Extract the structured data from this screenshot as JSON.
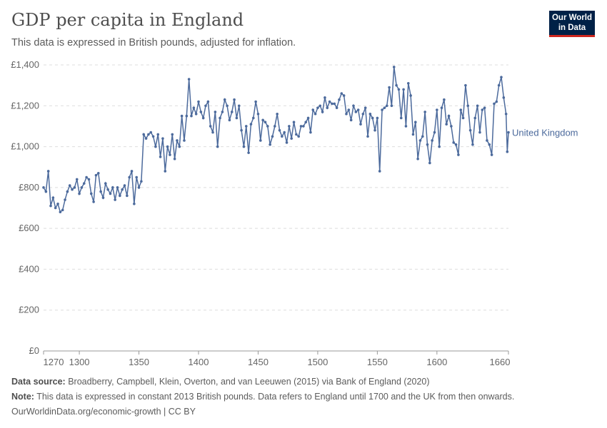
{
  "header": {
    "title": "GDP per capita in England",
    "subtitle": "This data is expressed in British pounds, adjusted for inflation.",
    "logo": "Our World in Data"
  },
  "footer": {
    "source_label": "Data source:",
    "source": "Broadberry, Campbell, Klein, Overton, and van Leeuwen (2015) via Bank of England (2020)",
    "note_label": "Note:",
    "note": "This data is expressed in constant 2013 British pounds. Data refers to England until 1700 and the UK from then onwards.",
    "url": "OurWorldinData.org/economic-growth | CC BY"
  },
  "colors": {
    "series": "#4c6a9c",
    "grid": "#dddddd",
    "text": "#666666"
  },
  "chart_data": {
    "type": "line",
    "title": "GDP per capita in England",
    "xlim": [
      1270,
      1660
    ],
    "ylim": [
      0,
      1400
    ],
    "x_ticks": [
      1270,
      1300,
      1350,
      1400,
      1450,
      1500,
      1550,
      1600,
      1660
    ],
    "y_ticks": [
      {
        "v": 0,
        "label": "£0"
      },
      {
        "v": 200,
        "label": "£200"
      },
      {
        "v": 400,
        "label": "£400"
      },
      {
        "v": 600,
        "label": "£600"
      },
      {
        "v": 800,
        "label": "£800"
      },
      {
        "v": 1000,
        "label": "£1,000"
      },
      {
        "v": 1200,
        "label": "£1,200"
      },
      {
        "v": 1400,
        "label": "£1,400"
      }
    ],
    "grid": "horizontal dashed",
    "legend": "right, at line end",
    "series": [
      {
        "name": "United Kingdom",
        "x": [
          1270,
          1272,
          1274,
          1276,
          1278,
          1280,
          1282,
          1284,
          1286,
          1288,
          1290,
          1292,
          1294,
          1296,
          1298,
          1300,
          1302,
          1304,
          1306,
          1308,
          1310,
          1312,
          1314,
          1316,
          1318,
          1320,
          1322,
          1324,
          1326,
          1328,
          1330,
          1332,
          1334,
          1336,
          1338,
          1340,
          1342,
          1344,
          1346,
          1348,
          1350,
          1352,
          1354,
          1356,
          1358,
          1360,
          1362,
          1364,
          1366,
          1368,
          1370,
          1372,
          1374,
          1376,
          1378,
          1380,
          1382,
          1384,
          1386,
          1388,
          1390,
          1392,
          1394,
          1396,
          1398,
          1400,
          1402,
          1404,
          1406,
          1408,
          1410,
          1412,
          1414,
          1416,
          1418,
          1420,
          1422,
          1424,
          1426,
          1428,
          1430,
          1432,
          1434,
          1436,
          1438,
          1440,
          1442,
          1444,
          1446,
          1448,
          1450,
          1452,
          1454,
          1456,
          1458,
          1460,
          1462,
          1464,
          1466,
          1468,
          1470,
          1472,
          1474,
          1476,
          1478,
          1480,
          1482,
          1484,
          1486,
          1488,
          1490,
          1492,
          1494,
          1496,
          1498,
          1500,
          1502,
          1504,
          1506,
          1508,
          1510,
          1512,
          1514,
          1516,
          1518,
          1520,
          1522,
          1524,
          1526,
          1528,
          1530,
          1532,
          1534,
          1536,
          1538,
          1540,
          1542,
          1544,
          1546,
          1548,
          1550,
          1552,
          1554,
          1556,
          1558,
          1560,
          1562,
          1564,
          1566,
          1568,
          1570,
          1572,
          1574,
          1576,
          1578,
          1580,
          1582,
          1584,
          1586,
          1588,
          1590,
          1592,
          1594,
          1596,
          1598,
          1600,
          1602,
          1604,
          1606,
          1608,
          1610,
          1612,
          1614,
          1616,
          1618,
          1620,
          1622,
          1624,
          1626,
          1628,
          1630,
          1632,
          1634,
          1636,
          1638,
          1640,
          1642,
          1644,
          1646,
          1648,
          1650,
          1652,
          1654,
          1656,
          1658,
          1659,
          1660
        ],
        "y": [
          800,
          780,
          880,
          710,
          750,
          700,
          720,
          680,
          690,
          740,
          780,
          810,
          790,
          800,
          840,
          770,
          800,
          820,
          850,
          840,
          770,
          730,
          860,
          870,
          780,
          750,
          820,
          790,
          770,
          800,
          740,
          800,
          760,
          790,
          810,
          760,
          850,
          880,
          720,
          850,
          800,
          830,
          1060,
          1040,
          1060,
          1070,
          1050,
          1000,
          1060,
          950,
          1040,
          880,
          1000,
          960,
          1060,
          940,
          1030,
          1000,
          1150,
          1030,
          1150,
          1330,
          1150,
          1190,
          1160,
          1220,
          1170,
          1140,
          1200,
          1220,
          1100,
          1070,
          1170,
          1000,
          1140,
          1170,
          1230,
          1200,
          1130,
          1170,
          1230,
          1140,
          1200,
          1080,
          1000,
          1100,
          970,
          1110,
          1140,
          1220,
          1160,
          1030,
          1130,
          1120,
          1100,
          1010,
          1050,
          1100,
          1160,
          1080,
          1050,
          1070,
          1020,
          1100,
          1040,
          1120,
          1060,
          1050,
          1100,
          1100,
          1120,
          1140,
          1070,
          1180,
          1160,
          1190,
          1200,
          1170,
          1240,
          1190,
          1220,
          1210,
          1210,
          1190,
          1230,
          1260,
          1250,
          1160,
          1180,
          1130,
          1200,
          1170,
          1180,
          1110,
          1160,
          1190,
          1050,
          1160,
          1140,
          1080,
          1140,
          880,
          1180,
          1190,
          1200,
          1290,
          1200,
          1390,
          1300,
          1280,
          1140,
          1280,
          1100,
          1310,
          1250,
          1060,
          1120,
          940,
          1030,
          1050,
          1170,
          1010,
          920,
          1030,
          1070,
          1180,
          1000,
          1190,
          1230,
          1110,
          1150,
          1100,
          1020,
          1010,
          960,
          1180,
          1140,
          1300,
          1200,
          1080,
          1010,
          1140,
          1200,
          1070,
          1180,
          1190,
          1030,
          1010,
          960,
          1210,
          1220,
          1300,
          1340,
          1240,
          1160,
          975,
          1070
        ]
      }
    ]
  }
}
